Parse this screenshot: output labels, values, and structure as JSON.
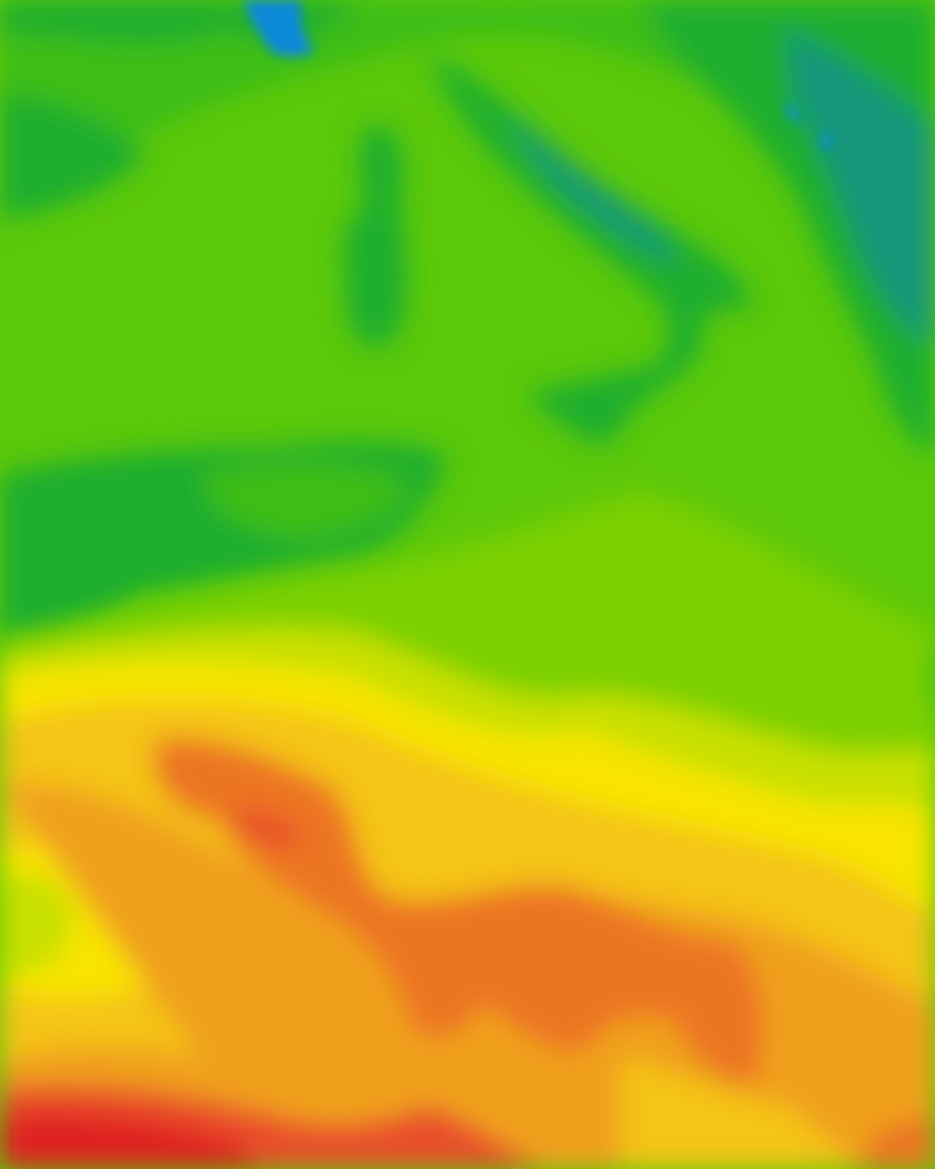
{
  "map": {
    "type": "temperature-field",
    "legend": null,
    "palette": {
      "blue": "#0a8ad8",
      "teal": "#12967a",
      "dark_green": "#1fae2e",
      "green": "#3cbe14",
      "base_green": "#5cc80a",
      "light_green": "#7cd000",
      "yellow_green": "#c8e000",
      "yellow": "#f8e400",
      "gold": "#f4c414",
      "orange": "#f0a01e",
      "dark_orange": "#ec7424",
      "red_orange": "#e8502a",
      "red": "#e02020"
    }
  }
}
